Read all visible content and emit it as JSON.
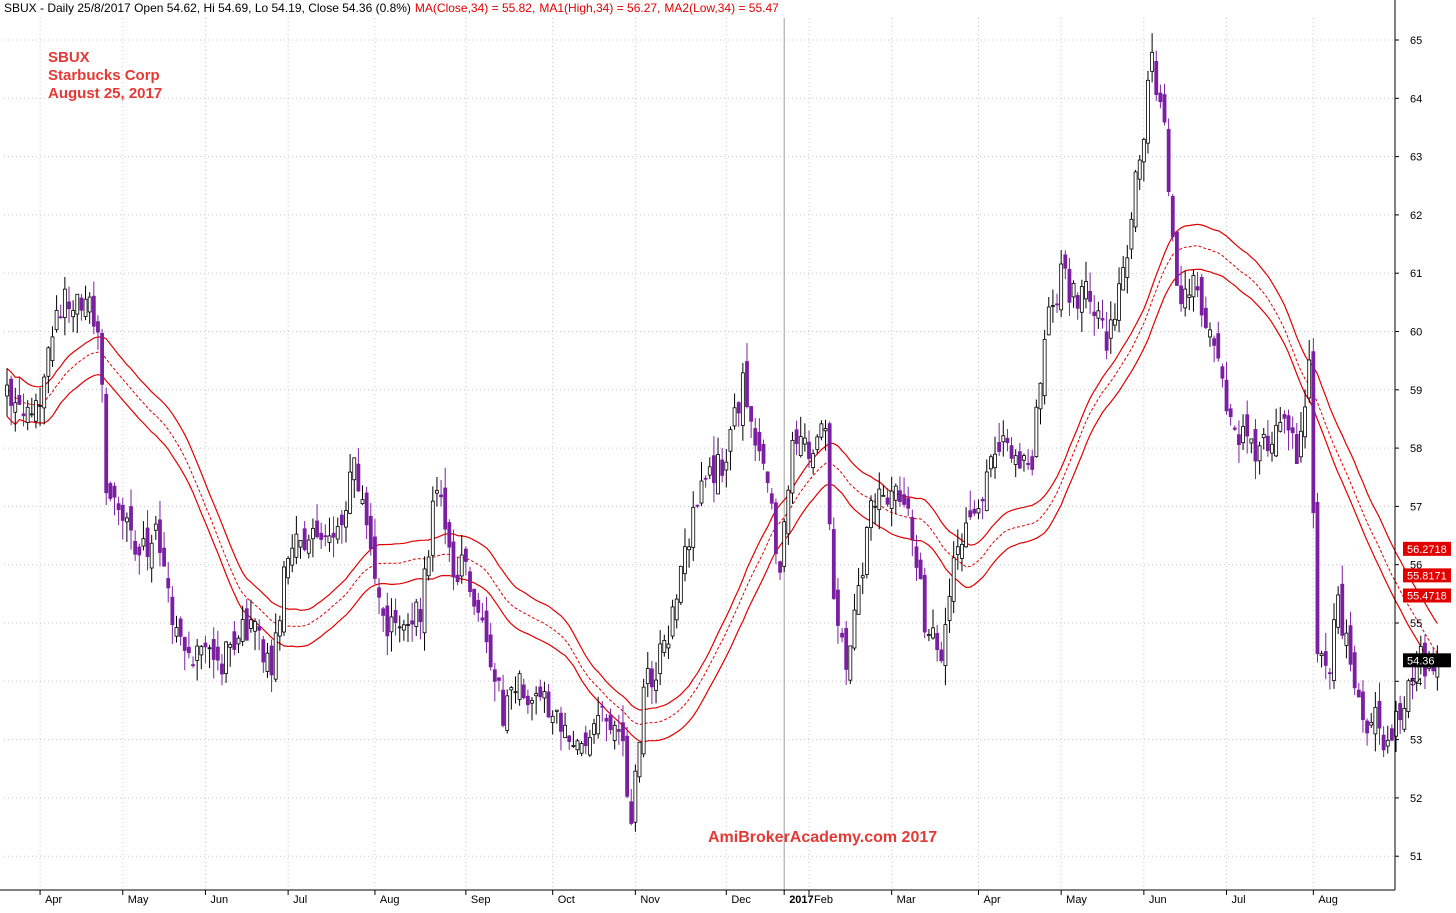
{
  "header": {
    "prefix": "SBUX - Daily 25/8/2017 Open 54.62, Hi 54.69, Lo 54.19, Close 54.36 (0.8%)",
    "ma_close": "MA(Close,34) = 55.82,",
    "ma_high": "MA1(High,34) = 56.27,",
    "ma_low": "MA2(Low,34) = 55.47"
  },
  "annotation": {
    "ticker": "SBUX",
    "company": "Starbucks Corp",
    "date": "August 25, 2017"
  },
  "watermark": "AmiBrokerAcademy.com  2017",
  "value_tags": {
    "ma_high": "56.2718",
    "ma_close": "55.8171",
    "ma_low": "55.4718",
    "close": "54.36"
  },
  "colors": {
    "candle": "#7b1fa2",
    "ma": "#e00000",
    "annotation": "#e53935",
    "grid": "#c8c8c8",
    "close_tag": "#000000"
  },
  "chart_data": {
    "type": "candlestick",
    "symbol": "SBUX",
    "period": "Daily",
    "ylim": [
      50.4,
      65.4
    ],
    "y_ticks": [
      51,
      52,
      53,
      54,
      55,
      56,
      57,
      58,
      59,
      60,
      61,
      62,
      63,
      64,
      65
    ],
    "x_tick_labels": [
      "Apr",
      "May",
      "Jun",
      "Jul",
      "Aug",
      "Sep",
      "Oct",
      "Nov",
      "Dec",
      "2017",
      "Feb",
      "Mar",
      "Apr",
      "May",
      "Jun",
      "Jul",
      "Aug"
    ],
    "x_tick_bold": [
      false,
      false,
      false,
      false,
      false,
      false,
      false,
      false,
      false,
      true,
      false,
      false,
      false,
      false,
      false,
      false,
      false
    ],
    "x_tick_bar_index": [
      8,
      28,
      48,
      68,
      89,
      111,
      132,
      152,
      174,
      188,
      194,
      214,
      235,
      255,
      275,
      295,
      316
    ],
    "close_path": [
      [
        0,
        59.1
      ],
      [
        4,
        58.3
      ],
      [
        8,
        58.9
      ],
      [
        12,
        60.3
      ],
      [
        15,
        60.6
      ],
      [
        18,
        60.5
      ],
      [
        22,
        60.2
      ],
      [
        24,
        57.5
      ],
      [
        28,
        56.9
      ],
      [
        32,
        56.2
      ],
      [
        36,
        56.5
      ],
      [
        40,
        55.0
      ],
      [
        44,
        54.3
      ],
      [
        48,
        54.6
      ],
      [
        52,
        54.3
      ],
      [
        56,
        54.9
      ],
      [
        60,
        55.0
      ],
      [
        64,
        54.1
      ],
      [
        68,
        56.3
      ],
      [
        72,
        56.4
      ],
      [
        76,
        56.6
      ],
      [
        80,
        56.5
      ],
      [
        84,
        57.6
      ],
      [
        88,
        56.2
      ],
      [
        92,
        55.0
      ],
      [
        96,
        55.0
      ],
      [
        100,
        55.2
      ],
      [
        104,
        57.5
      ],
      [
        108,
        56.0
      ],
      [
        112,
        55.8
      ],
      [
        116,
        54.5
      ],
      [
        120,
        53.5
      ],
      [
        124,
        53.9
      ],
      [
        128,
        53.7
      ],
      [
        132,
        53.5
      ],
      [
        136,
        53.2
      ],
      [
        140,
        52.9
      ],
      [
        144,
        53.5
      ],
      [
        148,
        53.3
      ],
      [
        151,
        51.6
      ],
      [
        154,
        53.9
      ],
      [
        158,
        54.4
      ],
      [
        162,
        55.4
      ],
      [
        166,
        56.8
      ],
      [
        170,
        57.6
      ],
      [
        174,
        57.8
      ],
      [
        178,
        59.2
      ],
      [
        180,
        58.4
      ],
      [
        184,
        57.3
      ],
      [
        187,
        56.0
      ],
      [
        190,
        57.9
      ],
      [
        194,
        58.0
      ],
      [
        198,
        58.4
      ],
      [
        200,
        55.5
      ],
      [
        203,
        54.2
      ],
      [
        206,
        55.7
      ],
      [
        210,
        57.2
      ],
      [
        214,
        57.3
      ],
      [
        218,
        57.1
      ],
      [
        222,
        55.1
      ],
      [
        226,
        54.5
      ],
      [
        229,
        56.0
      ],
      [
        232,
        56.5
      ],
      [
        236,
        57.1
      ],
      [
        240,
        58.1
      ],
      [
        244,
        57.9
      ],
      [
        248,
        57.9
      ],
      [
        252,
        60.2
      ],
      [
        255,
        61.0
      ],
      [
        258,
        60.6
      ],
      [
        262,
        60.6
      ],
      [
        266,
        59.8
      ],
      [
        270,
        60.9
      ],
      [
        274,
        63.0
      ],
      [
        277,
        64.6
      ],
      [
        280,
        63.6
      ],
      [
        282,
        61.4
      ],
      [
        284,
        60.7
      ],
      [
        288,
        60.7
      ],
      [
        292,
        59.7
      ],
      [
        296,
        58.5
      ],
      [
        300,
        58.1
      ],
      [
        304,
        58.0
      ],
      [
        308,
        58.5
      ],
      [
        312,
        57.9
      ],
      [
        315,
        59.3
      ],
      [
        317,
        54.7
      ],
      [
        320,
        54.3
      ],
      [
        322,
        55.3
      ],
      [
        325,
        54.3
      ],
      [
        328,
        53.2
      ],
      [
        331,
        53.4
      ],
      [
        334,
        52.9
      ],
      [
        337,
        53.4
      ],
      [
        340,
        54.0
      ],
      [
        342,
        54.36
      ]
    ],
    "ma_smoothing_note": "",
    "series": [
      {
        "name": "MA(Close,34)",
        "last": 55.82
      },
      {
        "name": "MA1(High,34)",
        "last": 56.27
      },
      {
        "name": "MA2(Low,34)",
        "last": 55.47
      }
    ],
    "last_close": 54.36,
    "grid": true
  }
}
